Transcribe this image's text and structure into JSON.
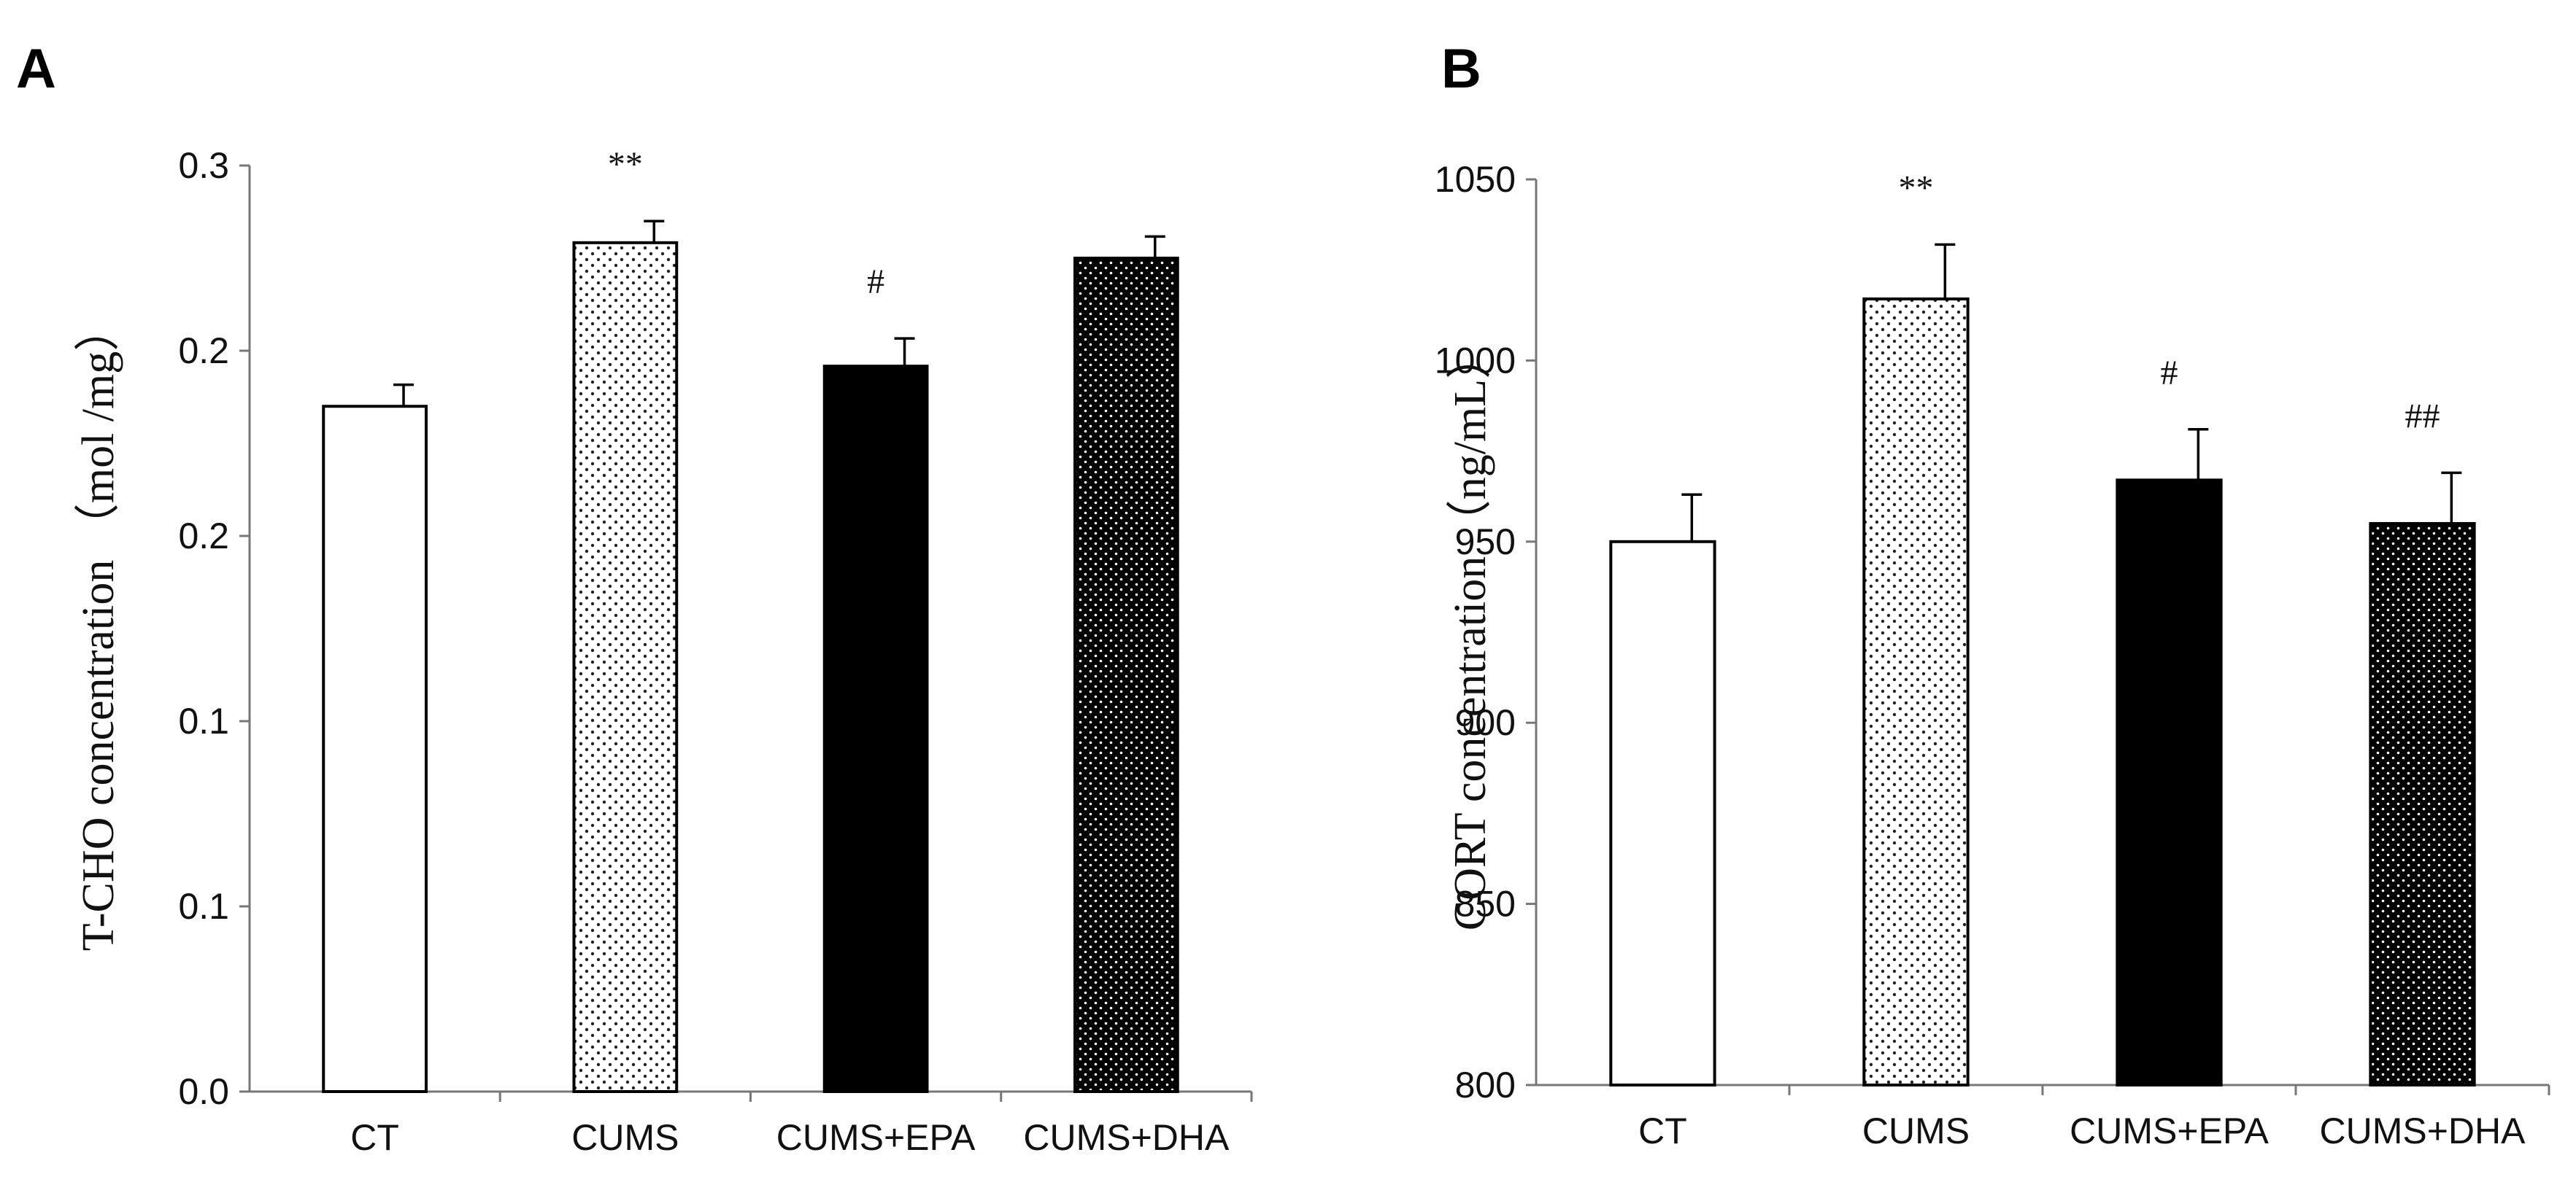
{
  "chart_data": [
    {
      "type": "bar",
      "panel_label": "A",
      "categories": [
        "CT",
        "CUMS",
        "CUMS+EPA",
        "CUMS+DHA"
      ],
      "values": [
        0.222,
        0.275,
        0.235,
        0.27
      ],
      "errors": [
        0.007,
        0.007,
        0.009,
        0.007
      ],
      "fills": [
        "white",
        "sparse-dots",
        "black",
        "dense-dots"
      ],
      "annotations": [
        "",
        "**",
        "#",
        ""
      ],
      "ylabel": "T-CHO concentration （mol /mg）",
      "ylim": [
        0,
        0.3
      ],
      "ytick_labels": [
        "0.0",
        "0.1",
        "0.1",
        "0.2",
        "0.2",
        "0.3"
      ],
      "grid": false
    },
    {
      "type": "bar",
      "panel_label": "B",
      "categories": [
        "CT",
        "CUMS",
        "CUMS+EPA",
        "CUMS+DHA"
      ],
      "values": [
        950,
        1017,
        967,
        955
      ],
      "errors": [
        13,
        15,
        14,
        14
      ],
      "fills": [
        "white",
        "sparse-dots",
        "black",
        "dense-dots"
      ],
      "annotations": [
        "",
        "**",
        "#",
        "##"
      ],
      "ylabel": "CORT concentration （ng/mL）",
      "ylim": [
        800,
        1050
      ],
      "ytick_labels": [
        "800",
        "850",
        "900",
        "950",
        "1000",
        "1050"
      ],
      "grid": false
    }
  ]
}
